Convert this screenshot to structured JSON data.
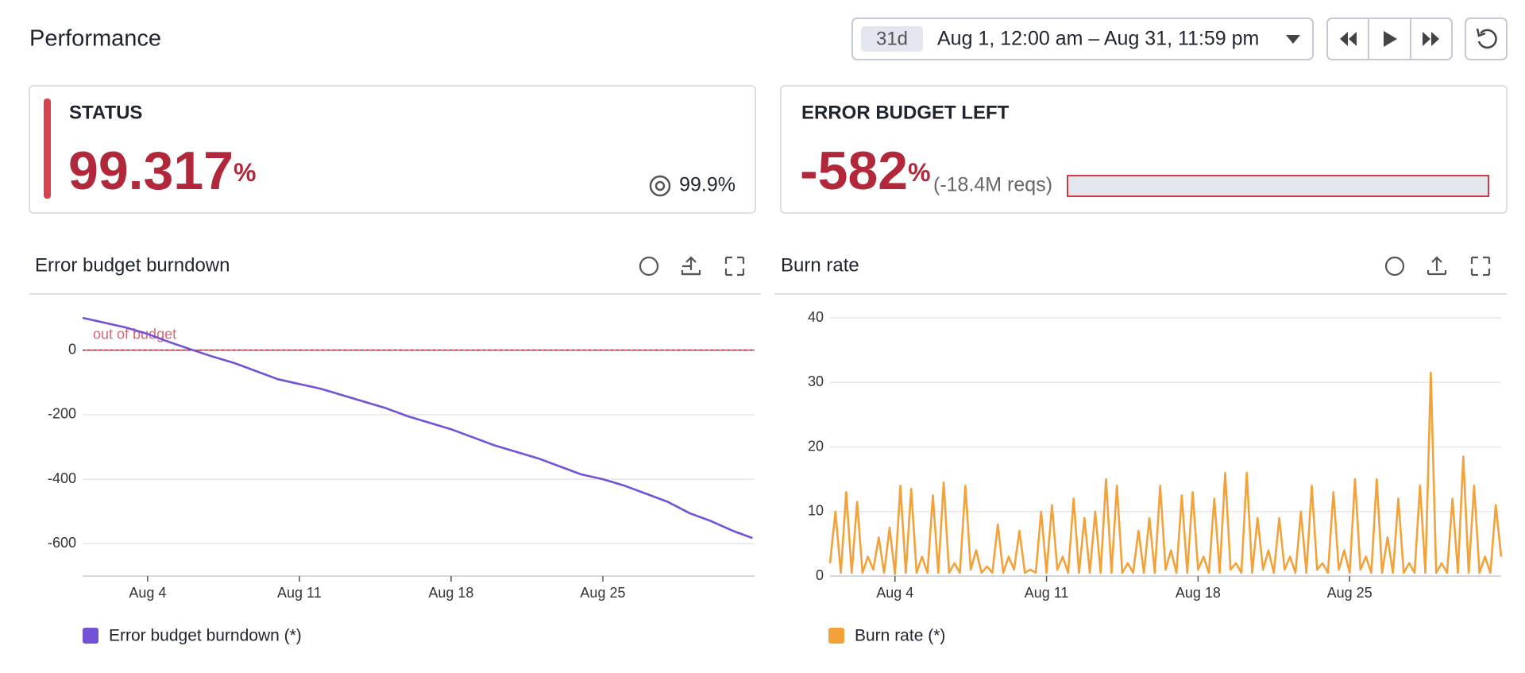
{
  "header": {
    "title": "Performance",
    "range_chip": "31d",
    "range": "Aug 1, 12:00 am – Aug 31, 11:59 pm"
  },
  "status": {
    "label": "STATUS",
    "value": "99.317",
    "unit": "%",
    "target": "99.9%"
  },
  "error_budget": {
    "label": "ERROR BUDGET LEFT",
    "value": "-582",
    "unit": "%",
    "requests": "(-18.4M reqs)"
  },
  "chart_data": [
    {
      "type": "line",
      "title": "Error budget burndown",
      "annotation": "out of budget",
      "threshold": 0,
      "x": [
        1,
        2,
        3,
        4,
        5,
        6,
        7,
        8,
        9,
        10,
        11,
        12,
        13,
        14,
        15,
        16,
        17,
        18,
        19,
        20,
        21,
        22,
        23,
        24,
        25,
        26,
        27,
        28,
        29,
        30,
        31,
        31.9
      ],
      "series": [
        {
          "name": "Error budget burndown (*)",
          "color": "#7352d8",
          "values": [
            100,
            85,
            70,
            50,
            25,
            2,
            -20,
            -40,
            -65,
            -90,
            -105,
            -120,
            -140,
            -160,
            -180,
            -205,
            -225,
            -245,
            -270,
            -295,
            -315,
            -335,
            -360,
            -385,
            -400,
            -420,
            -445,
            -470,
            -505,
            -530,
            -560,
            -582
          ]
        }
      ],
      "xlim": [
        1,
        32
      ],
      "xticks": [
        {
          "value": 4,
          "label": "Aug 4"
        },
        {
          "value": 11,
          "label": "Aug 11"
        },
        {
          "value": 18,
          "label": "Aug 18"
        },
        {
          "value": 25,
          "label": "Aug 25"
        }
      ],
      "ylim": [
        -700,
        100
      ],
      "yticks": [
        0,
        -200,
        -400,
        -600
      ],
      "grid": true
    },
    {
      "type": "line",
      "title": "Burn rate",
      "x": [
        1,
        1.25,
        1.5,
        1.75,
        2,
        2.25,
        2.5,
        2.75,
        3,
        3.25,
        3.5,
        3.75,
        4,
        4.25,
        4.5,
        4.75,
        5,
        5.25,
        5.5,
        5.75,
        6,
        6.25,
        6.5,
        6.75,
        7,
        7.25,
        7.5,
        7.75,
        8,
        8.25,
        8.5,
        8.75,
        9,
        9.25,
        9.5,
        9.75,
        10,
        10.25,
        10.5,
        10.75,
        11,
        11.25,
        11.5,
        11.75,
        12,
        12.25,
        12.5,
        12.75,
        13,
        13.25,
        13.5,
        13.75,
        14,
        14.25,
        14.5,
        14.75,
        15,
        15.25,
        15.5,
        15.75,
        16,
        16.25,
        16.5,
        16.75,
        17,
        17.25,
        17.5,
        17.75,
        18,
        18.25,
        18.5,
        18.75,
        19,
        19.25,
        19.5,
        19.75,
        20,
        20.25,
        20.5,
        20.75,
        21,
        21.25,
        21.5,
        21.75,
        22,
        22.25,
        22.5,
        22.75,
        23,
        23.25,
        23.5,
        23.75,
        24,
        24.25,
        24.5,
        24.75,
        25,
        25.25,
        25.5,
        25.75,
        26,
        26.25,
        26.5,
        26.75,
        27,
        27.25,
        27.5,
        27.75,
        28,
        28.25,
        28.5,
        28.75,
        29,
        29.25,
        29.5,
        29.75,
        30,
        30.25,
        30.5,
        30.75,
        31,
        31.25,
        31.5,
        31.75,
        32
      ],
      "series": [
        {
          "name": "Burn rate (*)",
          "color": "#f3a23a",
          "values": [
            2,
            10,
            0.5,
            13,
            0.5,
            11.5,
            0.5,
            3,
            1,
            6,
            0.5,
            7.5,
            0.3,
            14,
            0.5,
            13.5,
            0.5,
            3,
            0.5,
            12.5,
            0.5,
            14.5,
            0.5,
            2,
            0.5,
            14,
            1,
            4,
            0.5,
            1.5,
            0.5,
            8,
            0.5,
            3,
            1,
            7,
            0.5,
            1,
            0.5,
            10,
            0.5,
            11,
            1,
            3,
            0.5,
            12,
            0.5,
            9,
            0.5,
            10,
            0.5,
            15,
            0.5,
            14,
            0.5,
            2,
            0.5,
            7,
            0.5,
            9,
            0.5,
            14,
            1,
            4,
            0.5,
            12.5,
            0.5,
            13,
            1,
            3,
            0.5,
            12,
            0.5,
            16,
            1,
            2,
            0.5,
            16,
            0.5,
            9,
            1,
            4,
            0.5,
            9,
            1,
            3,
            0.5,
            10,
            0.5,
            14,
            1,
            2,
            0.5,
            13,
            1,
            4,
            0.5,
            15,
            1,
            3,
            0.5,
            15,
            0.5,
            6,
            0.5,
            12,
            0.5,
            2,
            0.5,
            14,
            0.5,
            31.5,
            0.5,
            2,
            0.5,
            12,
            0.5,
            18.5,
            0.5,
            14,
            0.5,
            3,
            0.5,
            11,
            3
          ]
        }
      ],
      "xlim": [
        1,
        32
      ],
      "xticks": [
        {
          "value": 4,
          "label": "Aug 4"
        },
        {
          "value": 11,
          "label": "Aug 11"
        },
        {
          "value": 18,
          "label": "Aug 18"
        },
        {
          "value": 25,
          "label": "Aug 25"
        }
      ],
      "ylim": [
        0,
        40
      ],
      "yticks": [
        0,
        10,
        20,
        30,
        40
      ],
      "grid": true
    }
  ]
}
